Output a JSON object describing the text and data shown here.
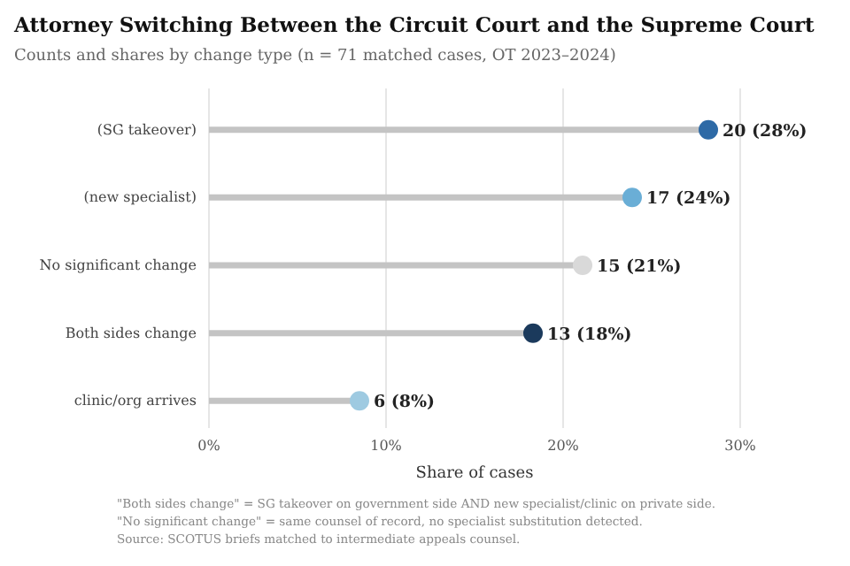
{
  "chart_data": {
    "type": "lollipop",
    "orientation": "horizontal",
    "title": "Attorney Switching Between the Circuit Court and the Supreme Court",
    "subtitle": "Counts and shares by change type (n = 71 matched cases, OT 2023–2024)",
    "xlabel": "Share of cases",
    "categories": [
      "(SG takeover)",
      "(new specialist)",
      "No significant change",
      "Both sides change",
      "clinic/org arrives"
    ],
    "values": [
      28.2,
      23.9,
      21.1,
      18.3,
      8.5
    ],
    "colors": [
      "#2e6aa6",
      "#6aaed6",
      "#d9d9d9",
      "#1b3a5c",
      "#9ecae1"
    ],
    "value_labels": [
      "20 (28%)",
      "17 (24%)",
      "15 (21%)",
      "13 (18%)",
      "6 (8%)"
    ],
    "xlim": [
      0,
      30
    ],
    "xticks": [
      {
        "value": 0,
        "label": "0%"
      },
      {
        "value": 10,
        "label": "10%"
      },
      {
        "value": 20,
        "label": "20%"
      },
      {
        "value": 30,
        "label": "30%"
      }
    ],
    "grid": "x",
    "annotations": [
      "\"Both sides change\" = SG takeover on government side AND new specialist/clinic on private side.",
      "\"No significant change\" = same counsel of record, no specialist substitution detected.",
      "Source: SCOTUS briefs matched to intermediate appeals counsel."
    ]
  }
}
